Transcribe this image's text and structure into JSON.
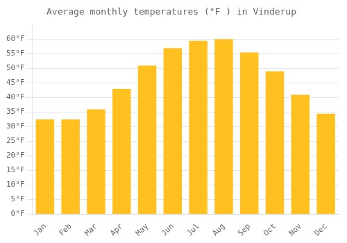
{
  "chart_data": {
    "type": "bar",
    "title": "Average monthly temperatures (°F ) in Vinderup",
    "categories": [
      "Jan",
      "Feb",
      "Mar",
      "Apr",
      "May",
      "Jun",
      "Jul",
      "Aug",
      "Sep",
      "Oct",
      "Nov",
      "Dec"
    ],
    "values": [
      32.5,
      32.5,
      36.0,
      43.0,
      51.0,
      57.0,
      59.5,
      60.0,
      55.5,
      49.0,
      41.0,
      34.5
    ],
    "color": "#FFC020",
    "ylim": [
      0,
      65
    ],
    "yticks": [
      {
        "value": 0,
        "label": "0°F"
      },
      {
        "value": 5,
        "label": "5°F"
      },
      {
        "value": 10,
        "label": "10°F"
      },
      {
        "value": 15,
        "label": "15°F"
      },
      {
        "value": 20,
        "label": "20°F"
      },
      {
        "value": 25,
        "label": "25°F"
      },
      {
        "value": 30,
        "label": "30°F"
      },
      {
        "value": 35,
        "label": "35°F"
      },
      {
        "value": 40,
        "label": "40°F"
      },
      {
        "value": 45,
        "label": "45°F"
      },
      {
        "value": 50,
        "label": "50°F"
      },
      {
        "value": 55,
        "label": "55°F"
      },
      {
        "value": 60,
        "label": "60°F"
      }
    ],
    "grid": true
  }
}
